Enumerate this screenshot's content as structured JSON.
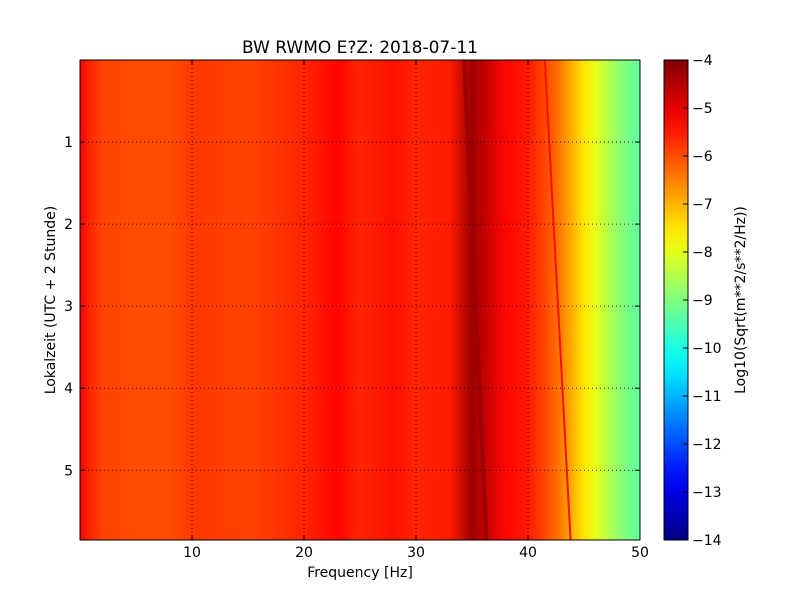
{
  "chart_data": {
    "type": "heatmap",
    "title": "BW RWMO E?Z: 2018-07-11",
    "xlabel": "Frequency [Hz]",
    "ylabel": "Lokalzeit (UTC + 2 Stunde)",
    "xlim": [
      0,
      50
    ],
    "ylim": [
      5.85,
      0
    ],
    "x_ticks": [
      10,
      20,
      30,
      40,
      50
    ],
    "y_ticks": [
      1,
      2,
      3,
      4,
      5
    ],
    "grid": true,
    "colorbar": {
      "label": "Log10(Sqrt(m**2/s**2/Hz))",
      "colormap": "jet",
      "vmin": -14,
      "vmax": -4,
      "ticks": [
        -4,
        -5,
        -6,
        -7,
        -8,
        -9,
        -10,
        -11,
        -12,
        -13,
        -14
      ]
    },
    "spectral_profile": {
      "frequency_hz": [
        0,
        0.8,
        2,
        5,
        8,
        10,
        15,
        17,
        20,
        23,
        25,
        28,
        30,
        33,
        35,
        38,
        40,
        41,
        42,
        43,
        44,
        45,
        46,
        47,
        48,
        49,
        50
      ],
      "log10_amplitude": [
        -5.2,
        -5.6,
        -5.9,
        -6.0,
        -6.0,
        -5.8,
        -5.9,
        -5.8,
        -5.6,
        -5.3,
        -5.6,
        -5.4,
        -5.6,
        -5.5,
        -4.3,
        -5.3,
        -5.5,
        -5.8,
        -6.1,
        -6.5,
        -7.0,
        -7.5,
        -8.0,
        -8.4,
        -8.8,
        -9.1,
        -9.3
      ]
    },
    "features": [
      {
        "kind": "drifting-line",
        "x_start_hz": 34.3,
        "x_end_hz": 36.3,
        "t_start": 0,
        "t_end": 5.85,
        "value": -4.3
      },
      {
        "kind": "drifting-line",
        "x_start_hz": 41.5,
        "x_end_hz": 43.8,
        "t_start": 0,
        "t_end": 5.85,
        "value": -5.4
      }
    ]
  }
}
